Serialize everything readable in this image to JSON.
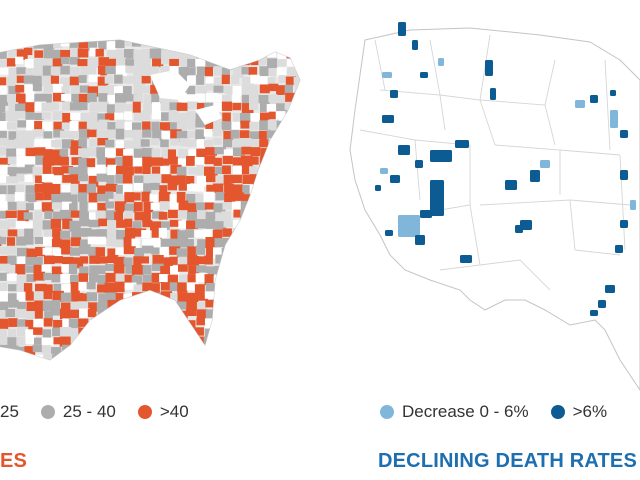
{
  "colors": {
    "rising_high": "#e4572e",
    "rising_mid": "#adadad",
    "rising_low": "#dcdcdc",
    "declining_low": "#7fb6d9",
    "declining_high": "#0c5c93",
    "map_outline": "#c8c8c8",
    "land": "#ffffff"
  },
  "left_map": {
    "legend": [
      {
        "label": "25",
        "color": "#dcdcdc",
        "icon": "legend-dot-icon"
      },
      {
        "label": "25 - 40",
        "color": "#adadad",
        "icon": "legend-dot-icon"
      },
      {
        "label": ">40",
        "color": "#e4572e",
        "icon": "legend-dot-icon"
      }
    ],
    "caption": "ES",
    "caption_color": "#e4572e"
  },
  "right_map": {
    "legend": [
      {
        "label": "Decrease 0 - 6%",
        "color": "#7fb6d9",
        "icon": "legend-dot-icon"
      },
      {
        "label": ">6%",
        "color": "#0c5c93",
        "icon": "legend-dot-icon"
      }
    ],
    "caption": "DECLINING DEATH RATES",
    "caption_color": "#1e6fb0"
  }
}
